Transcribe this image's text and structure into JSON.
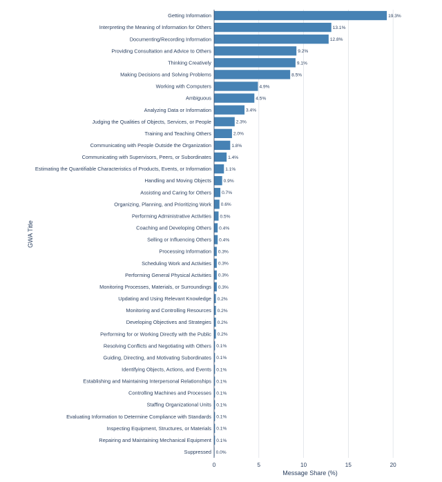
{
  "chart_data": {
    "type": "bar",
    "orientation": "horizontal",
    "title": "",
    "xlabel": "Message Share (%)",
    "ylabel": "GWA Title",
    "xlim": [
      0,
      21.3
    ],
    "xticks": [
      0,
      5,
      10,
      15,
      20
    ],
    "grid": true,
    "bar_color": "#4682b4",
    "categories": [
      "Getting Information",
      "Interpreting the Meaning of Information for Others",
      "Documenting/Recording Information",
      "Providing Consultation and Advice to Others",
      "Thinking Creatively",
      "Making Decisions and Solving Problems",
      "Working with Computers",
      "Ambiguous",
      "Analyzing Data or Information",
      "Judging the Qualities of Objects, Services, or People",
      "Training and Teaching Others",
      "Communicating with People Outside the Organization",
      "Communicating with Supervisors, Peers, or Subordinates",
      "Estimating the Quantifiable Characteristics of Products, Events, or Information",
      "Handling and Moving Objects",
      "Assisting and Caring for Others",
      "Organizing, Planning, and Prioritizing Work",
      "Performing Administrative Activities",
      "Coaching and Developing Others",
      "Selling or Influencing Others",
      "Processing Information",
      "Scheduling Work and Activities",
      "Performing General Physical Activities",
      "Monitoring Processes, Materials, or Surroundings",
      "Updating and Using Relevant Knowledge",
      "Monitoring and Controlling Resources",
      "Developing Objectives and Strategies",
      "Performing for or Working Directly with the Public",
      "Resolving Conflicts and Negotiating with Others",
      "Guiding, Directing, and Motivating Subordinates",
      "Identifying Objects, Actions, and Events",
      "Establishing and Maintaining Interpersonal Relationships",
      "Controlling Machines and Processes",
      "Staffing Organizational Units",
      "Evaluating Information to Determine Compliance with Standards",
      "Inspecting Equipment, Structures, or Materials",
      "Repairing and Maintaining Mechanical Equipment",
      "Suppressed"
    ],
    "values": [
      19.3,
      13.1,
      12.8,
      9.2,
      9.1,
      8.5,
      4.9,
      4.5,
      3.4,
      2.3,
      2.0,
      1.8,
      1.4,
      1.1,
      0.9,
      0.7,
      0.6,
      0.5,
      0.4,
      0.4,
      0.3,
      0.3,
      0.3,
      0.3,
      0.2,
      0.2,
      0.2,
      0.2,
      0.1,
      0.1,
      0.1,
      0.1,
      0.1,
      0.1,
      0.1,
      0.1,
      0.1,
      0.0
    ],
    "value_labels": [
      "19.3%",
      "13.1%",
      "12.8%",
      "9.2%",
      "9.1%",
      "8.5%",
      "4.9%",
      "4.5%",
      "3.4%",
      "2.3%",
      "2.0%",
      "1.8%",
      "1.4%",
      "1.1%",
      "0.9%",
      "0.7%",
      "0.6%",
      "0.5%",
      "0.4%",
      "0.4%",
      "0.3%",
      "0.3%",
      "0.3%",
      "0.3%",
      "0.2%",
      "0.2%",
      "0.2%",
      "0.2%",
      "0.1%",
      "0.1%",
      "0.1%",
      "0.1%",
      "0.1%",
      "0.1%",
      "0.1%",
      "0.1%",
      "0.1%",
      "0.0%"
    ]
  }
}
